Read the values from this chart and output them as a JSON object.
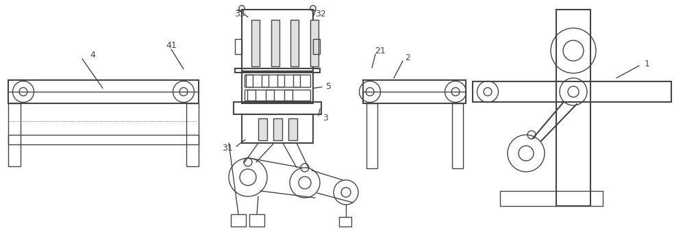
{
  "bg_color": "#ffffff",
  "line_color": "#444444",
  "lw": 1.0,
  "lw2": 1.5,
  "fs": 9
}
